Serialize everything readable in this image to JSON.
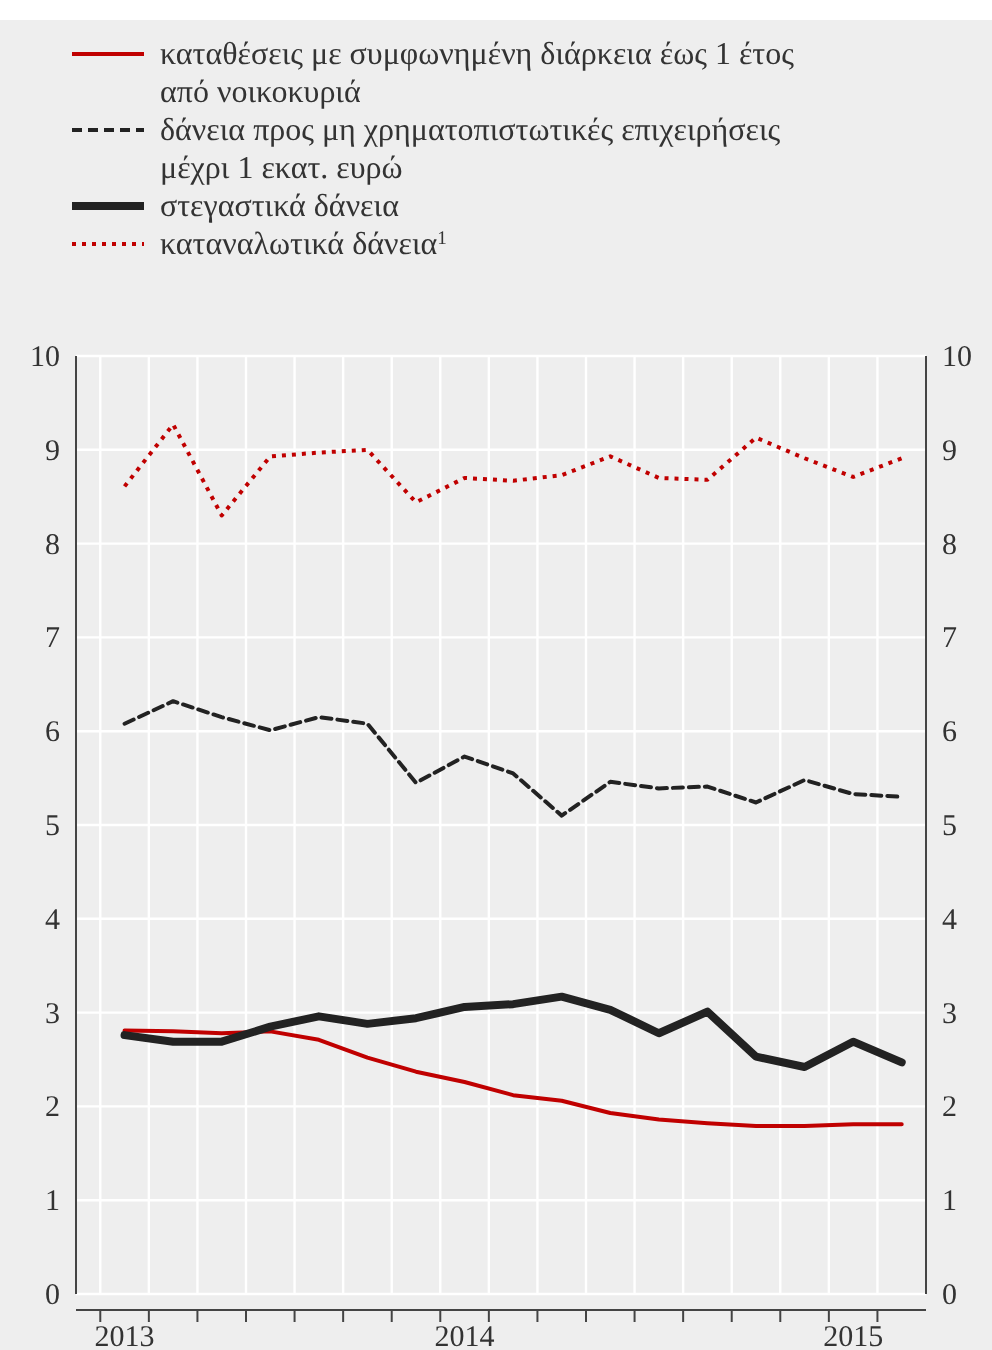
{
  "chart_data": {
    "type": "line",
    "categories": [
      "2013",
      null,
      null,
      null,
      null,
      null,
      null,
      "2014",
      null,
      null,
      null,
      null,
      null,
      null,
      null,
      "2015",
      null
    ],
    "ylim": [
      0,
      10
    ],
    "yticks": [
      0,
      1,
      2,
      3,
      4,
      5,
      6,
      7,
      8,
      9,
      10
    ],
    "y2lim": [
      0,
      10
    ],
    "y2ticks": [
      0,
      1,
      2,
      3,
      4,
      5,
      6,
      7,
      8,
      9,
      10
    ],
    "grid": true,
    "legend": "top",
    "series": [
      {
        "name": "καταθέσεις με συμφωνημένη διάρκεια έως 1 έτος από νοικοκυριά",
        "color": "#c00000",
        "line_style": "solid",
        "values": [
          2.81,
          2.8,
          2.78,
          2.8,
          2.71,
          2.52,
          2.37,
          2.26,
          2.12,
          2.06,
          1.93,
          1.86,
          1.82,
          1.79,
          1.79,
          1.81,
          1.81
        ]
      },
      {
        "name": "δάνεια προς μη χρηματοπιστωτικές επιχειρήσεις μέχρι 1 εκατ. ευρώ",
        "color": "#222222",
        "line_style": "dashed",
        "values": [
          6.08,
          6.32,
          6.15,
          6.01,
          6.15,
          6.08,
          5.45,
          5.73,
          5.55,
          5.1,
          5.46,
          5.39,
          5.41,
          5.24,
          5.48,
          5.33,
          5.3
        ]
      },
      {
        "name": "στεγαστικά δάνεια",
        "color": "#222222",
        "line_style": "solid",
        "values": [
          2.76,
          2.69,
          2.69,
          2.85,
          2.96,
          2.88,
          2.94,
          3.06,
          3.09,
          3.17,
          3.03,
          2.78,
          3.01,
          2.53,
          2.42,
          2.69,
          2.47
        ]
      },
      {
        "name": "καταναλωτικά δάνεια$^{1}$",
        "color": "#c00000",
        "line_style": "dotted",
        "values": [
          8.61,
          9.27,
          8.3,
          8.93,
          8.97,
          9.0,
          8.44,
          8.7,
          8.67,
          8.73,
          8.93,
          8.7,
          8.68,
          9.13,
          8.91,
          8.71,
          8.91
        ]
      }
    ]
  }
}
